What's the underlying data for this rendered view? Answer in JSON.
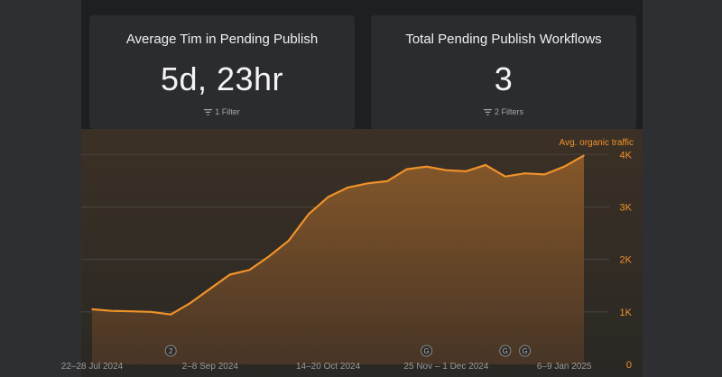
{
  "cards": [
    {
      "title": "Average Tim in Pending Publish",
      "value": "5d, 23hr",
      "filter": "1 Filter"
    },
    {
      "title": "Total Pending Publish Workflows",
      "value": "3",
      "filter": "2 Filters"
    }
  ],
  "colors": {
    "accent": "#f0922a",
    "card_bg": "#2b2c2f",
    "panel_bg": "#1e1f21",
    "page_bg": "#2d2f33"
  },
  "icons": {
    "filter": "filter-icon",
    "annotation": "annotation-marker-icon"
  },
  "chart_data": {
    "type": "area",
    "legend": "Avg. organic traffic",
    "legend_position": "top-right",
    "grid": true,
    "ylim": [
      0,
      4400
    ],
    "y_ticks": [
      {
        "value": 0,
        "label": "0"
      },
      {
        "value": 1000,
        "label": "1K"
      },
      {
        "value": 2000,
        "label": "2K"
      },
      {
        "value": 3000,
        "label": "3K"
      },
      {
        "value": 4000,
        "label": "4K"
      }
    ],
    "x_labels": [
      {
        "index": 0,
        "label": "22–28 Jul 2024"
      },
      {
        "index": 6,
        "label": "2–8 Sep 2024"
      },
      {
        "index": 12,
        "label": "14–20 Oct 2024"
      },
      {
        "index": 18,
        "label": "25 Nov – 1 Dec 2024"
      },
      {
        "index": 24,
        "label": "6–9 Jan 2025"
      }
    ],
    "series": [
      {
        "values": [
          1050,
          1020,
          1010,
          1000,
          950,
          1170,
          1440,
          1710,
          1800,
          2060,
          2360,
          2860,
          3190,
          3370,
          3450,
          3490,
          3720,
          3770,
          3700,
          3680,
          3800,
          3580,
          3640,
          3620,
          3770,
          3980
        ]
      }
    ],
    "annotations": [
      {
        "index": 4,
        "label": "2"
      },
      {
        "index": 17,
        "label": "G"
      },
      {
        "index": 21,
        "label": "G"
      },
      {
        "index": 22,
        "label": "G"
      }
    ]
  }
}
